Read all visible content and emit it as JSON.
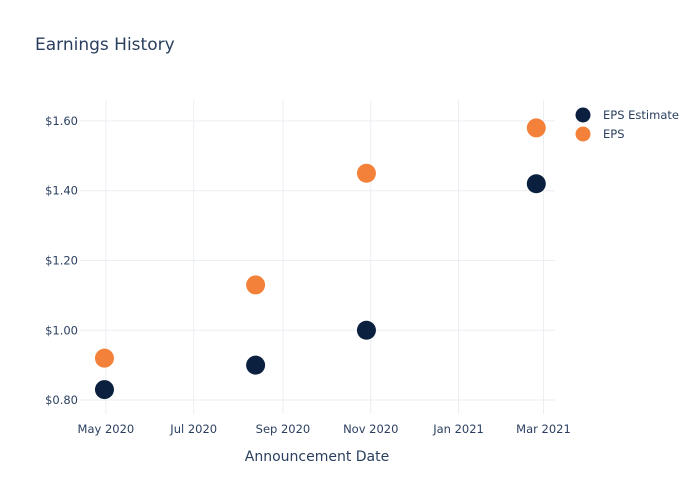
{
  "chart_data": {
    "type": "scatter",
    "title": "Earnings History",
    "xlabel": "Announcement Date",
    "ylabel": "",
    "x_ticks": [
      {
        "date": "2020-05-01",
        "label": "May 2020"
      },
      {
        "date": "2020-07-01",
        "label": "Jul 2020"
      },
      {
        "date": "2020-09-01",
        "label": "Sep 2020"
      },
      {
        "date": "2020-11-01",
        "label": "Nov 2020"
      },
      {
        "date": "2021-01-01",
        "label": "Jan 2021"
      },
      {
        "date": "2021-03-01",
        "label": "Mar 2021"
      }
    ],
    "y_ticks": [
      {
        "value": 0.8,
        "label": "$0.80"
      },
      {
        "value": 1.0,
        "label": "$1.00"
      },
      {
        "value": 1.2,
        "label": "$1.20"
      },
      {
        "value": 1.4,
        "label": "$1.40"
      },
      {
        "value": 1.6,
        "label": "$1.60"
      }
    ],
    "xlim": [
      "2020-04-13",
      "2021-03-09"
    ],
    "ylim": [
      0.76,
      1.66
    ],
    "grid": true,
    "legend": "top-right",
    "series": [
      {
        "name": "EPS Estimate",
        "color": "#0b1f3f",
        "points": [
          {
            "x": "2020-04-30",
            "y": 0.83
          },
          {
            "x": "2020-08-13",
            "y": 0.9
          },
          {
            "x": "2020-10-29",
            "y": 1.0
          },
          {
            "x": "2021-02-24",
            "y": 1.42
          }
        ]
      },
      {
        "name": "EPS",
        "color": "#f4813a",
        "points": [
          {
            "x": "2020-04-30",
            "y": 0.92
          },
          {
            "x": "2020-08-13",
            "y": 1.13
          },
          {
            "x": "2020-10-29",
            "y": 1.45
          },
          {
            "x": "2021-02-24",
            "y": 1.58
          }
        ]
      }
    ]
  }
}
